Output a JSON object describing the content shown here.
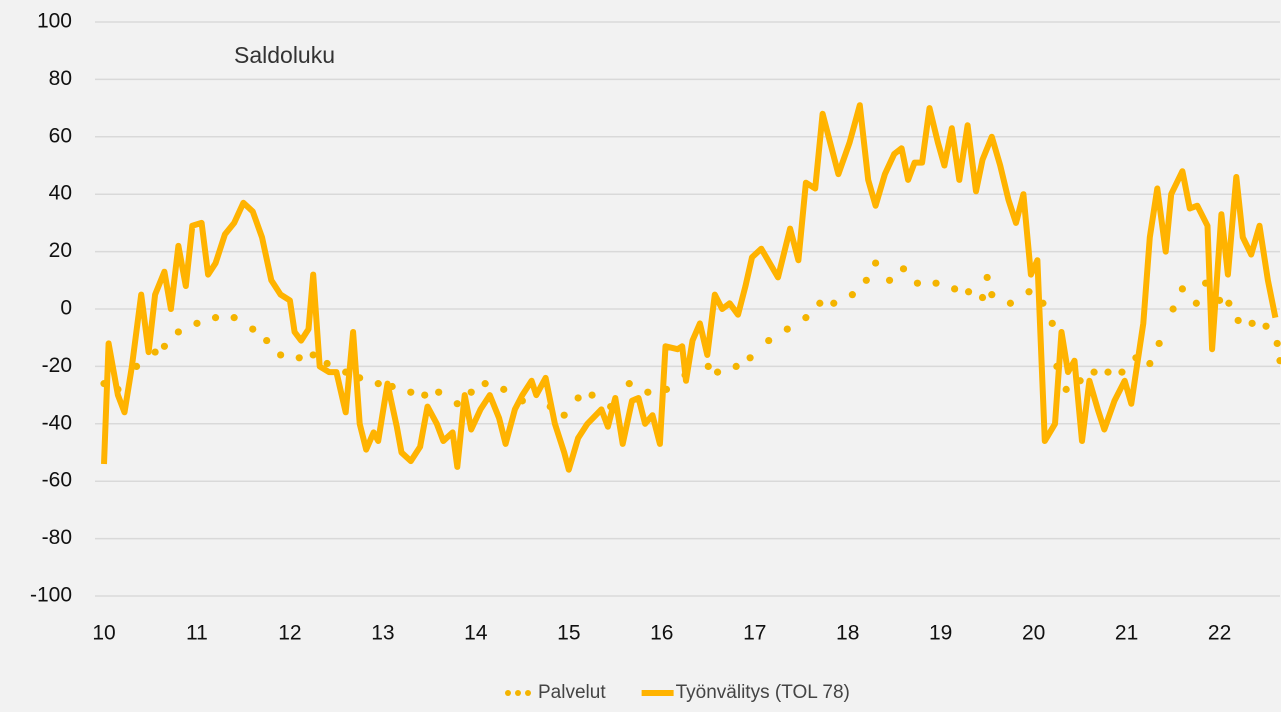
{
  "chart_data": {
    "type": "line",
    "title": "Saldoluku",
    "xlim": [
      10,
      22.65
    ],
    "xticks": [
      10,
      11,
      12,
      13,
      14,
      15,
      16,
      17,
      18,
      19,
      20,
      21,
      22
    ],
    "ylim": [
      -100,
      100
    ],
    "yticks": [
      -100,
      -80,
      -60,
      -40,
      -20,
      0,
      20,
      40,
      60,
      80,
      100
    ],
    "grid": true,
    "legend": "bottom",
    "series": [
      {
        "name": "Palvelut",
        "color": "#f4b400",
        "style": "dotted",
        "x": [
          10.0,
          10.15,
          10.35,
          10.55,
          10.65,
          10.8,
          11.0,
          11.2,
          11.4,
          11.6,
          11.75,
          11.9,
          12.1,
          12.25,
          12.4,
          12.6,
          12.75,
          12.95,
          13.1,
          13.3,
          13.45,
          13.6,
          13.8,
          13.95,
          14.1,
          14.3,
          14.5,
          14.65,
          14.8,
          14.95,
          15.1,
          15.25,
          15.45,
          15.65,
          15.85,
          16.05,
          16.25,
          16.5,
          16.6,
          16.8,
          16.95,
          17.15,
          17.35,
          17.55,
          17.7,
          17.85,
          18.05,
          18.2,
          18.3,
          18.45,
          18.6,
          18.75,
          18.95,
          19.15,
          19.3,
          19.45,
          19.5,
          19.55,
          19.75,
          19.95,
          20.1,
          20.2,
          20.25,
          20.35,
          20.5,
          20.65,
          20.8,
          20.95,
          21.1,
          21.25,
          21.35,
          21.5,
          21.6,
          21.75,
          21.85,
          22.0,
          22.1,
          22.2,
          22.35,
          22.5,
          22.62,
          22.65
        ],
        "values": [
          -26,
          -28,
          -20,
          -15,
          -13,
          -8,
          -5,
          -3,
          -3,
          -7,
          -11,
          -16,
          -17,
          -16,
          -19,
          -22,
          -24,
          -26,
          -27,
          -29,
          -30,
          -29,
          -33,
          -29,
          -26,
          -28,
          -32,
          -29,
          -34,
          -37,
          -31,
          -30,
          -34,
          -26,
          -29,
          -28,
          -23,
          -20,
          -22,
          -20,
          -17,
          -11,
          -7,
          -3,
          2,
          2,
          5,
          10,
          16,
          10,
          14,
          9,
          9,
          7,
          6,
          4,
          11,
          5,
          2,
          6,
          2,
          -5,
          -20,
          -28,
          -25,
          -22,
          -22,
          -22,
          -17,
          -19,
          -12,
          0,
          7,
          2,
          9,
          3,
          2,
          -4,
          -5,
          -6,
          -12,
          -18
        ]
      },
      {
        "name": "Työnvälitys (TOL 78)",
        "color": "#ffb300",
        "style": "solid",
        "x": [
          10.0,
          10.05,
          10.15,
          10.22,
          10.3,
          10.4,
          10.48,
          10.55,
          10.65,
          10.72,
          10.8,
          10.88,
          10.95,
          11.05,
          11.12,
          11.2,
          11.3,
          11.4,
          11.5,
          11.6,
          11.7,
          11.8,
          11.9,
          12.0,
          12.05,
          12.12,
          12.2,
          12.25,
          12.32,
          12.42,
          12.5,
          12.6,
          12.68,
          12.75,
          12.82,
          12.9,
          12.95,
          13.05,
          13.15,
          13.2,
          13.3,
          13.4,
          13.48,
          13.58,
          13.65,
          13.75,
          13.8,
          13.88,
          13.95,
          14.05,
          14.15,
          14.25,
          14.32,
          14.42,
          14.5,
          14.6,
          14.65,
          14.75,
          14.85,
          14.95,
          15.0,
          15.1,
          15.2,
          15.35,
          15.42,
          15.5,
          15.58,
          15.68,
          15.75,
          15.82,
          15.9,
          15.98,
          16.04,
          16.17,
          16.22,
          16.26,
          16.33,
          16.41,
          16.49,
          16.57,
          16.65,
          16.73,
          16.82,
          16.9,
          16.97,
          17.07,
          17.25,
          17.38,
          17.47,
          17.55,
          17.65,
          17.73,
          17.9,
          18.02,
          18.13,
          18.22,
          18.3,
          18.4,
          18.5,
          18.58,
          18.65,
          18.72,
          18.8,
          18.88,
          18.97,
          19.04,
          19.12,
          19.2,
          19.29,
          19.38,
          19.45,
          19.55,
          19.64,
          19.73,
          19.81,
          19.89,
          19.97,
          20.04,
          20.12,
          20.23,
          20.3,
          20.37,
          20.44,
          20.52,
          20.6,
          20.69,
          20.76,
          20.87,
          20.98,
          21.05,
          21.18,
          21.25,
          21.33,
          21.42,
          21.48,
          21.6,
          21.68,
          21.76,
          21.87,
          21.92,
          22.02,
          22.09,
          22.18,
          22.25,
          22.34,
          22.43,
          22.52,
          22.6
        ],
        "values": [
          -54,
          -12,
          -30,
          -36,
          -20,
          5,
          -15,
          5,
          13,
          0,
          22,
          8,
          29,
          30,
          12,
          16,
          26,
          30,
          37,
          34,
          25,
          10,
          5,
          3,
          -8,
          -11,
          -7,
          12,
          -20,
          -22,
          -22,
          -36,
          -8,
          -40,
          -49,
          -43,
          -46,
          -26,
          -41,
          -50,
          -53,
          -48,
          -34,
          -40,
          -46,
          -43,
          -55,
          -30,
          -42,
          -35,
          -30,
          -38,
          -47,
          -35,
          -30,
          -25,
          -30,
          -24,
          -40,
          -50,
          -56,
          -45,
          -40,
          -35,
          -41,
          -31,
          -47,
          -32,
          -31,
          -40,
          -37,
          -47,
          -13,
          -14,
          -13,
          -25,
          -11,
          -5,
          -16,
          5,
          0,
          2,
          -2,
          8,
          18,
          21,
          11,
          28,
          17,
          44,
          42,
          68,
          47,
          58,
          71,
          45,
          36,
          47,
          54,
          56,
          45,
          51,
          51,
          70,
          58,
          50,
          63,
          45,
          64,
          41,
          52,
          60,
          50,
          38,
          30,
          40,
          12,
          17,
          -46,
          -40,
          -8,
          -22,
          -18,
          -46,
          -25,
          -35,
          -42,
          -32,
          -25,
          -33,
          -5,
          25,
          42,
          20,
          40,
          48,
          35,
          36,
          29,
          -14,
          33,
          12,
          46,
          25,
          19,
          29,
          10,
          -3
        ]
      }
    ]
  }
}
